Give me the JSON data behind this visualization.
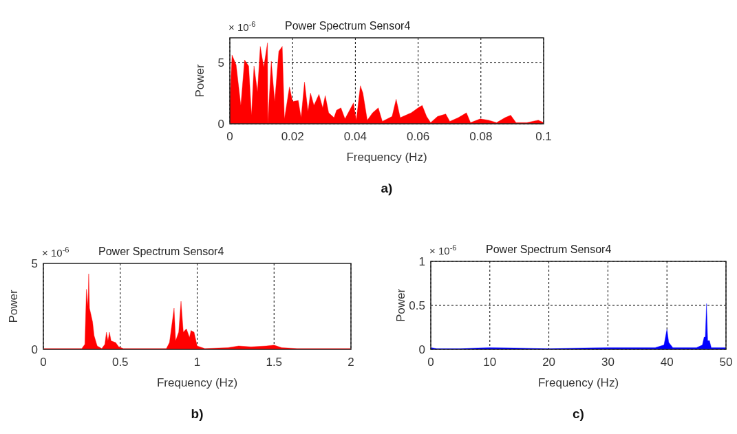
{
  "chart_data": [
    {
      "type": "area",
      "title": "Power Spectrum Sensor4",
      "xlabel": "Frequency (Hz)",
      "ylabel": "Power",
      "annotations": [
        "× 10$^{-6}$",
        "a)"
      ],
      "xlim": [
        0,
        0.1
      ],
      "xticks": [
        0,
        0.02,
        0.04,
        0.06,
        0.08,
        0.1
      ],
      "ylim": [
        0,
        7
      ],
      "yticks": [
        0,
        5
      ],
      "grid": true,
      "series": [
        {
          "color": "#ff0000",
          "x": [
            0,
            0.0007,
            0.002,
            0.0035,
            0.0047,
            0.006,
            0.0069,
            0.0077,
            0.0088,
            0.0097,
            0.0108,
            0.012,
            0.0121,
            0.0132,
            0.0143,
            0.0156,
            0.0167,
            0.0174,
            0.019,
            0.02,
            0.0218,
            0.0227,
            0.0238,
            0.0249,
            0.0257,
            0.0268,
            0.0284,
            0.0296,
            0.0304,
            0.0315,
            0.0332,
            0.034,
            0.0354,
            0.0367,
            0.0394,
            0.0403,
            0.0416,
            0.0424,
            0.0438,
            0.0455,
            0.0473,
            0.0486,
            0.0517,
            0.053,
            0.0543,
            0.0578,
            0.06,
            0.0613,
            0.0627,
            0.064,
            0.0662,
            0.0688,
            0.0701,
            0.0728,
            0.0754,
            0.0767,
            0.0798,
            0.0824,
            0.085,
            0.0877,
            0.0895,
            0.0912,
            0.0947,
            0.0983,
            0.1
          ],
          "values": [
            1.5,
            5.6,
            4.8,
            1.5,
            5.2,
            4.7,
            0.7,
            4.7,
            2.6,
            6.3,
            4.6,
            6.6,
            0,
            5.1,
            1.8,
            5.9,
            6.3,
            0.4,
            3.0,
            1.8,
            1.9,
            0.5,
            3.4,
            1.0,
            2.5,
            1.5,
            2.4,
            1.3,
            2.3,
            0.9,
            0.5,
            1.1,
            1.3,
            0.4,
            1.7,
            0.3,
            3.1,
            2.5,
            0.3,
            0.9,
            1.3,
            0.2,
            0.6,
            2.0,
            0.5,
            0.9,
            1.3,
            1.5,
            0.6,
            0.1,
            0.6,
            0.8,
            0.2,
            0.5,
            0.9,
            0.1,
            0.4,
            0.3,
            0.1,
            0.5,
            0.7,
            0.1,
            0.1,
            0.3,
            0.1
          ]
        }
      ]
    },
    {
      "type": "area",
      "title": "Power Spectrum Sensor4",
      "xlabel": "Frequency (Hz)",
      "ylabel": "Power",
      "annotations": [
        "× 10$^{-6}$",
        "b)"
      ],
      "xlim": [
        0,
        2
      ],
      "xticks": [
        0,
        0.5,
        1,
        1.5,
        2
      ],
      "ylim": [
        0,
        5
      ],
      "yticks": [
        0,
        5
      ],
      "grid": "x",
      "series": [
        {
          "color": "#ff0000",
          "x": [
            0,
            0.25,
            0.27,
            0.28,
            0.29,
            0.295,
            0.3,
            0.32,
            0.33,
            0.35,
            0.38,
            0.4,
            0.41,
            0.42,
            0.43,
            0.44,
            0.47,
            0.49,
            0.52,
            0.8,
            0.82,
            0.85,
            0.86,
            0.88,
            0.895,
            0.91,
            0.93,
            0.95,
            0.96,
            0.98,
            1.0,
            1.05,
            1.2,
            1.27,
            1.35,
            1.45,
            1.5,
            1.55,
            1.65,
            2
          ],
          "values": [
            0.05,
            0.05,
            0.3,
            3.5,
            2.5,
            4.4,
            2.4,
            1.6,
            0.8,
            0.2,
            0.05,
            0.3,
            1.0,
            0.5,
            1.0,
            0.5,
            0.4,
            0.15,
            0.05,
            0.05,
            0.4,
            2.4,
            0.5,
            1.0,
            2.8,
            1.0,
            1.2,
            0.7,
            1.1,
            1.0,
            0.2,
            0.05,
            0.1,
            0.2,
            0.15,
            0.2,
            0.25,
            0.1,
            0.05,
            0.05
          ]
        }
      ]
    },
    {
      "type": "area",
      "title": "Power Spectrum Sensor4",
      "xlabel": "Frequency (Hz)",
      "ylabel": "Power",
      "annotations": [
        "× 10$^{-6}$",
        "c)"
      ],
      "xlim": [
        0,
        50
      ],
      "xticks": [
        0,
        10,
        20,
        30,
        40,
        50
      ],
      "ylim": [
        0,
        1
      ],
      "yticks": [
        0,
        0.5,
        1
      ],
      "grid": true,
      "series": [
        {
          "color": "#0000ff",
          "x": [
            0,
            1,
            5,
            10,
            20,
            30,
            38,
            39.5,
            40,
            40.3,
            41,
            45,
            46,
            46.3,
            46.5,
            46.7,
            46.9,
            47.2,
            47.5,
            50
          ],
          "values": [
            0.02,
            0.01,
            0.01,
            0.02,
            0.01,
            0.02,
            0.02,
            0.05,
            0.23,
            0.08,
            0.02,
            0.02,
            0.05,
            0.14,
            0.14,
            0.52,
            0.1,
            0.1,
            0.02,
            0.02
          ]
        }
      ]
    }
  ]
}
